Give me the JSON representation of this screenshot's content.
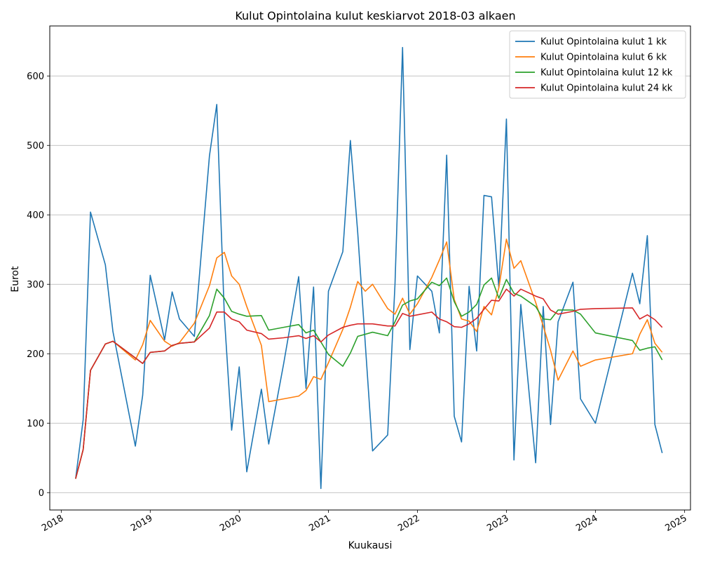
{
  "chart_data": {
    "type": "line",
    "title": "Kulut Opintolaina kulut keskiarvot 2018-03 alkaen",
    "xlabel": "Kuukausi",
    "ylabel": "Eurot",
    "xlim": [
      "2017-11-15",
      "2025-01-25"
    ],
    "ylim": [
      -25,
      672
    ],
    "x_ticks": [
      "2018",
      "2019",
      "2020",
      "2021",
      "2022",
      "2023",
      "2024",
      "2025"
    ],
    "y_ticks": [
      0,
      100,
      200,
      300,
      400,
      500,
      600
    ],
    "grid": "horizontal",
    "legend_position": "top-right",
    "series": [
      {
        "name": "Kulut Opintolaina kulut 1 kk",
        "color": "#1f77b4",
        "points": [
          [
            "2018-03-01",
            20
          ],
          [
            "2018-04-01",
            105
          ],
          [
            "2018-05-01",
            404
          ],
          [
            "2018-07-01",
            328
          ],
          [
            "2018-08-01",
            232
          ],
          [
            "2018-11-01",
            67
          ],
          [
            "2018-12-01",
            140
          ],
          [
            "2019-01-01",
            313
          ],
          [
            "2019-03-01",
            220
          ],
          [
            "2019-04-01",
            289
          ],
          [
            "2019-05-01",
            250
          ],
          [
            "2019-07-01",
            225
          ],
          [
            "2019-09-01",
            485
          ],
          [
            "2019-10-01",
            559
          ],
          [
            "2019-11-01",
            255
          ],
          [
            "2019-12-01",
            90
          ],
          [
            "2020-01-01",
            181
          ],
          [
            "2020-02-01",
            30
          ],
          [
            "2020-04-01",
            149
          ],
          [
            "2020-05-01",
            70
          ],
          [
            "2020-07-01",
            185
          ],
          [
            "2020-09-01",
            311
          ],
          [
            "2020-10-01",
            150
          ],
          [
            "2020-11-01",
            296
          ],
          [
            "2020-12-01",
            6
          ],
          [
            "2021-01-01",
            290
          ],
          [
            "2021-03-01",
            347
          ],
          [
            "2021-04-01",
            507
          ],
          [
            "2021-05-01",
            375
          ],
          [
            "2021-07-01",
            60
          ],
          [
            "2021-09-01",
            83
          ],
          [
            "2021-10-01",
            300
          ],
          [
            "2021-11-01",
            641
          ],
          [
            "2021-12-01",
            206
          ],
          [
            "2022-01-01",
            312
          ],
          [
            "2022-03-01",
            290
          ],
          [
            "2022-04-01",
            230
          ],
          [
            "2022-05-01",
            486
          ],
          [
            "2022-06-01",
            110
          ],
          [
            "2022-07-01",
            73
          ],
          [
            "2022-08-01",
            297
          ],
          [
            "2022-09-01",
            204
          ],
          [
            "2022-10-01",
            428
          ],
          [
            "2022-11-01",
            426
          ],
          [
            "2022-12-01",
            295
          ],
          [
            "2023-01-01",
            538
          ],
          [
            "2023-02-01",
            47
          ],
          [
            "2023-03-01",
            271
          ],
          [
            "2023-05-01",
            43
          ],
          [
            "2023-06-01",
            268
          ],
          [
            "2023-07-01",
            98
          ],
          [
            "2023-08-01",
            246
          ],
          [
            "2023-10-01",
            303
          ],
          [
            "2023-11-01",
            135
          ],
          [
            "2024-01-01",
            100
          ],
          [
            "2024-06-01",
            316
          ],
          [
            "2024-07-01",
            272
          ],
          [
            "2024-08-01",
            370
          ],
          [
            "2024-09-01",
            98
          ],
          [
            "2024-10-01",
            57
          ]
        ]
      },
      {
        "name": "Kulut Opintolaina kulut 6 kk",
        "color": "#ff7f0e",
        "points": [
          [
            "2018-03-01",
            20
          ],
          [
            "2018-04-01",
            62
          ],
          [
            "2018-05-01",
            176
          ],
          [
            "2018-07-01",
            214
          ],
          [
            "2018-08-01",
            218
          ],
          [
            "2018-11-01",
            191
          ],
          [
            "2018-12-01",
            213
          ],
          [
            "2019-01-01",
            248
          ],
          [
            "2019-03-01",
            218
          ],
          [
            "2019-04-01",
            211
          ],
          [
            "2019-05-01",
            216
          ],
          [
            "2019-07-01",
            244
          ],
          [
            "2019-09-01",
            298
          ],
          [
            "2019-10-01",
            338
          ],
          [
            "2019-11-01",
            346
          ],
          [
            "2019-12-01",
            312
          ],
          [
            "2020-01-01",
            300
          ],
          [
            "2020-02-01",
            268
          ],
          [
            "2020-04-01",
            212
          ],
          [
            "2020-05-01",
            131
          ],
          [
            "2020-07-01",
            135
          ],
          [
            "2020-09-01",
            139
          ],
          [
            "2020-10-01",
            147
          ],
          [
            "2020-11-01",
            167
          ],
          [
            "2020-12-01",
            163
          ],
          [
            "2021-01-01",
            187
          ],
          [
            "2021-03-01",
            235
          ],
          [
            "2021-04-01",
            267
          ],
          [
            "2021-05-01",
            304
          ],
          [
            "2021-06-01",
            290
          ],
          [
            "2021-07-01",
            300
          ],
          [
            "2021-09-01",
            265
          ],
          [
            "2021-10-01",
            257
          ],
          [
            "2021-11-01",
            280
          ],
          [
            "2021-12-01",
            257
          ],
          [
            "2022-01-01",
            272
          ],
          [
            "2022-03-01",
            310
          ],
          [
            "2022-04-01",
            335
          ],
          [
            "2022-05-01",
            361
          ],
          [
            "2022-06-01",
            278
          ],
          [
            "2022-07-01",
            250
          ],
          [
            "2022-08-01",
            247
          ],
          [
            "2022-09-01",
            232
          ],
          [
            "2022-10-01",
            268
          ],
          [
            "2022-11-01",
            256
          ],
          [
            "2022-12-01",
            295
          ],
          [
            "2023-01-01",
            365
          ],
          [
            "2023-02-01",
            323
          ],
          [
            "2023-03-01",
            334
          ],
          [
            "2023-05-01",
            274
          ],
          [
            "2023-06-01",
            240
          ],
          [
            "2023-07-01",
            205
          ],
          [
            "2023-08-01",
            162
          ],
          [
            "2023-10-01",
            204
          ],
          [
            "2023-11-01",
            182
          ],
          [
            "2024-01-01",
            191
          ],
          [
            "2024-06-01",
            200
          ],
          [
            "2024-07-01",
            228
          ],
          [
            "2024-08-01",
            249
          ],
          [
            "2024-09-01",
            215
          ],
          [
            "2024-10-01",
            202
          ]
        ]
      },
      {
        "name": "Kulut Opintolaina kulut 12 kk",
        "color": "#2ca02c",
        "points": [
          [
            "2018-03-01",
            20
          ],
          [
            "2018-04-01",
            62
          ],
          [
            "2018-05-01",
            176
          ],
          [
            "2018-07-01",
            214
          ],
          [
            "2018-08-01",
            218
          ],
          [
            "2018-11-01",
            194
          ],
          [
            "2018-12-01",
            186
          ],
          [
            "2019-01-01",
            202
          ],
          [
            "2019-03-01",
            204
          ],
          [
            "2019-04-01",
            212
          ],
          [
            "2019-05-01",
            215
          ],
          [
            "2019-07-01",
            217
          ],
          [
            "2019-09-01",
            255
          ],
          [
            "2019-10-01",
            293
          ],
          [
            "2019-11-01",
            280
          ],
          [
            "2019-12-01",
            261
          ],
          [
            "2020-01-01",
            257
          ],
          [
            "2020-02-01",
            254
          ],
          [
            "2020-04-01",
            255
          ],
          [
            "2020-05-01",
            234
          ],
          [
            "2020-07-01",
            238
          ],
          [
            "2020-09-01",
            242
          ],
          [
            "2020-10-01",
            230
          ],
          [
            "2020-11-01",
            234
          ],
          [
            "2020-12-01",
            217
          ],
          [
            "2021-01-01",
            199
          ],
          [
            "2021-03-01",
            182
          ],
          [
            "2021-04-01",
            201
          ],
          [
            "2021-05-01",
            225
          ],
          [
            "2021-07-01",
            231
          ],
          [
            "2021-09-01",
            226
          ],
          [
            "2021-10-01",
            246
          ],
          [
            "2021-11-01",
            270
          ],
          [
            "2021-12-01",
            276
          ],
          [
            "2022-01-01",
            279
          ],
          [
            "2022-03-01",
            303
          ],
          [
            "2022-04-01",
            298
          ],
          [
            "2022-05-01",
            309
          ],
          [
            "2022-06-01",
            275
          ],
          [
            "2022-07-01",
            254
          ],
          [
            "2022-08-01",
            260
          ],
          [
            "2022-09-01",
            271
          ],
          [
            "2022-10-01",
            299
          ],
          [
            "2022-11-01",
            309
          ],
          [
            "2022-12-01",
            280
          ],
          [
            "2023-01-01",
            307
          ],
          [
            "2023-02-01",
            287
          ],
          [
            "2023-03-01",
            283
          ],
          [
            "2023-05-01",
            268
          ],
          [
            "2023-06-01",
            250
          ],
          [
            "2023-07-01",
            249
          ],
          [
            "2023-08-01",
            263
          ],
          [
            "2023-10-01",
            263
          ],
          [
            "2023-11-01",
            257
          ],
          [
            "2024-01-01",
            230
          ],
          [
            "2024-06-01",
            219
          ],
          [
            "2024-07-01",
            205
          ],
          [
            "2024-08-01",
            208
          ],
          [
            "2024-09-01",
            210
          ],
          [
            "2024-10-01",
            191
          ]
        ]
      },
      {
        "name": "Kulut Opintolaina kulut 24 kk",
        "color": "#d62728",
        "points": [
          [
            "2018-03-01",
            20
          ],
          [
            "2018-04-01",
            62
          ],
          [
            "2018-05-01",
            176
          ],
          [
            "2018-07-01",
            214
          ],
          [
            "2018-08-01",
            218
          ],
          [
            "2018-11-01",
            194
          ],
          [
            "2018-12-01",
            186
          ],
          [
            "2019-01-01",
            202
          ],
          [
            "2019-03-01",
            204
          ],
          [
            "2019-04-01",
            212
          ],
          [
            "2019-05-01",
            215
          ],
          [
            "2019-07-01",
            217
          ],
          [
            "2019-09-01",
            237
          ],
          [
            "2019-10-01",
            260
          ],
          [
            "2019-11-01",
            260
          ],
          [
            "2019-12-01",
            250
          ],
          [
            "2020-01-01",
            246
          ],
          [
            "2020-02-01",
            234
          ],
          [
            "2020-04-01",
            229
          ],
          [
            "2020-05-01",
            221
          ],
          [
            "2020-07-01",
            223
          ],
          [
            "2020-09-01",
            226
          ],
          [
            "2020-10-01",
            222
          ],
          [
            "2020-11-01",
            226
          ],
          [
            "2020-12-01",
            217
          ],
          [
            "2021-01-01",
            227
          ],
          [
            "2021-03-01",
            238
          ],
          [
            "2021-04-01",
            241
          ],
          [
            "2021-05-01",
            243
          ],
          [
            "2021-07-01",
            243
          ],
          [
            "2021-09-01",
            240
          ],
          [
            "2021-10-01",
            240
          ],
          [
            "2021-11-01",
            258
          ],
          [
            "2021-12-01",
            254
          ],
          [
            "2022-01-01",
            256
          ],
          [
            "2022-03-01",
            260
          ],
          [
            "2022-04-01",
            250
          ],
          [
            "2022-05-01",
            246
          ],
          [
            "2022-06-01",
            239
          ],
          [
            "2022-07-01",
            238
          ],
          [
            "2022-08-01",
            243
          ],
          [
            "2022-09-01",
            251
          ],
          [
            "2022-10-01",
            264
          ],
          [
            "2022-11-01",
            277
          ],
          [
            "2022-12-01",
            276
          ],
          [
            "2023-01-01",
            293
          ],
          [
            "2023-02-01",
            283
          ],
          [
            "2023-03-01",
            293
          ],
          [
            "2023-05-01",
            283
          ],
          [
            "2023-06-01",
            279
          ],
          [
            "2023-07-01",
            263
          ],
          [
            "2023-08-01",
            257
          ],
          [
            "2023-10-01",
            261
          ],
          [
            "2023-11-01",
            264
          ],
          [
            "2024-01-01",
            265
          ],
          [
            "2024-06-01",
            266
          ],
          [
            "2024-07-01",
            250
          ],
          [
            "2024-08-01",
            256
          ],
          [
            "2024-09-01",
            249
          ],
          [
            "2024-10-01",
            238
          ]
        ]
      }
    ]
  }
}
